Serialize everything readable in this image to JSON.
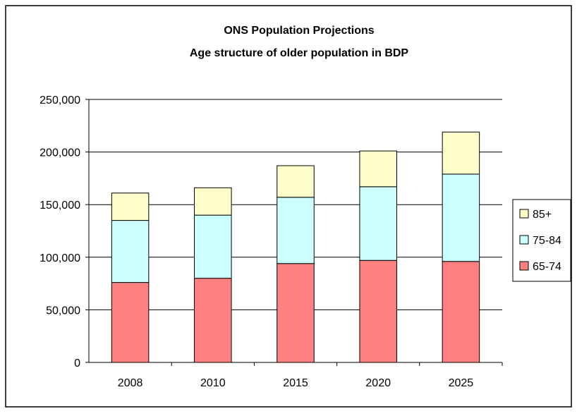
{
  "chart_data": {
    "type": "bar",
    "stacked": true,
    "title": "ONS Population Projections",
    "subtitle": "Age structure of older population in BDP",
    "xlabel": "",
    "ylabel": "",
    "categories": [
      "2008",
      "2010",
      "2015",
      "2020",
      "2025"
    ],
    "y_ticks": [
      "0",
      "50,000",
      "100,000",
      "150,000",
      "200,000",
      "250,000"
    ],
    "ylim": [
      0,
      250000
    ],
    "grid": true,
    "legend_position": "right",
    "series": [
      {
        "name": "65-74",
        "color": "#FF8080",
        "values": [
          76000,
          80000,
          94000,
          97000,
          96000
        ]
      },
      {
        "name": "75-84",
        "color": "#CCFFFF",
        "values": [
          59000,
          60000,
          63000,
          70000,
          83000
        ]
      },
      {
        "name": "85+",
        "color": "#FFFFCC",
        "values": [
          26000,
          26000,
          30000,
          34000,
          40000
        ]
      }
    ],
    "legend_order": [
      "85+",
      "75-84",
      "65-74"
    ]
  }
}
